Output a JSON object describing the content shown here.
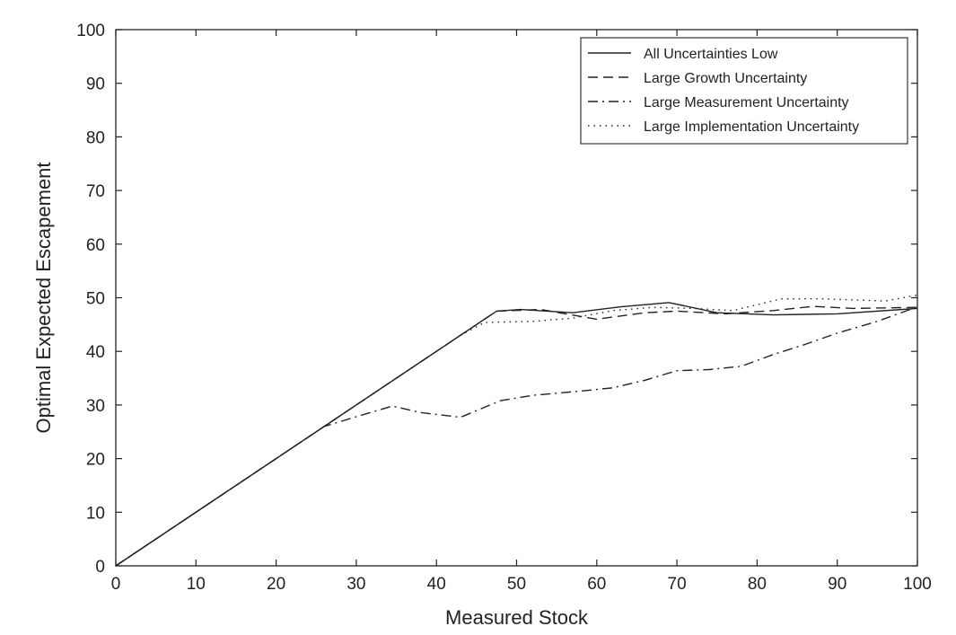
{
  "chart_data": {
    "type": "line",
    "title": "",
    "xlabel": "Measured Stock",
    "ylabel": "Optimal Expected Escapement",
    "xlim": [
      0,
      100
    ],
    "ylim": [
      0,
      100
    ],
    "xticks": [
      0,
      10,
      20,
      30,
      40,
      50,
      60,
      70,
      80,
      90,
      100
    ],
    "yticks": [
      0,
      10,
      20,
      30,
      40,
      50,
      60,
      70,
      80,
      90,
      100
    ],
    "grid": false,
    "legend_position": "top-right",
    "series": [
      {
        "name": "All Uncertainties Low",
        "style": "solid",
        "x": [
          0,
          47.5,
          50.5,
          57,
          63,
          69,
          75,
          82,
          90,
          100
        ],
        "y": [
          0,
          47.5,
          47.8,
          47.2,
          48.3,
          49.1,
          47.2,
          46.8,
          47.0,
          48.0
        ]
      },
      {
        "name": "Large Growth Uncertainty",
        "style": "dashed",
        "x": [
          0,
          47.5,
          53,
          60,
          66,
          70,
          76,
          82,
          87,
          92,
          100
        ],
        "y": [
          0,
          47.5,
          47.8,
          46.0,
          47.2,
          47.5,
          47.0,
          47.6,
          48.4,
          48.0,
          48.2
        ]
      },
      {
        "name": "Large Measurement Uncertainty",
        "style": "dashdot",
        "x": [
          0,
          26,
          30,
          34.5,
          38,
          43,
          48,
          52,
          58,
          62,
          66,
          70,
          74,
          78,
          82,
          86,
          90,
          95,
          100
        ],
        "y": [
          0,
          26,
          27.8,
          29.8,
          28.6,
          27.7,
          30.8,
          31.8,
          32.6,
          33.2,
          34.6,
          36.4,
          36.6,
          37.2,
          39.4,
          41.3,
          43.4,
          45.6,
          48.3
        ]
      },
      {
        "name": "Large Implementation Uncertainty",
        "style": "dotted",
        "x": [
          0,
          43,
          46,
          52,
          57,
          62,
          67,
          72,
          77,
          83,
          88,
          92,
          96,
          100
        ],
        "y": [
          0,
          43,
          45.4,
          45.6,
          46.2,
          47.6,
          48.2,
          48.0,
          47.6,
          49.8,
          49.8,
          49.6,
          49.4,
          50.5
        ]
      }
    ]
  },
  "styles": {
    "line_color": "#222222",
    "axis_color": "#222222",
    "background": "#ffffff"
  }
}
